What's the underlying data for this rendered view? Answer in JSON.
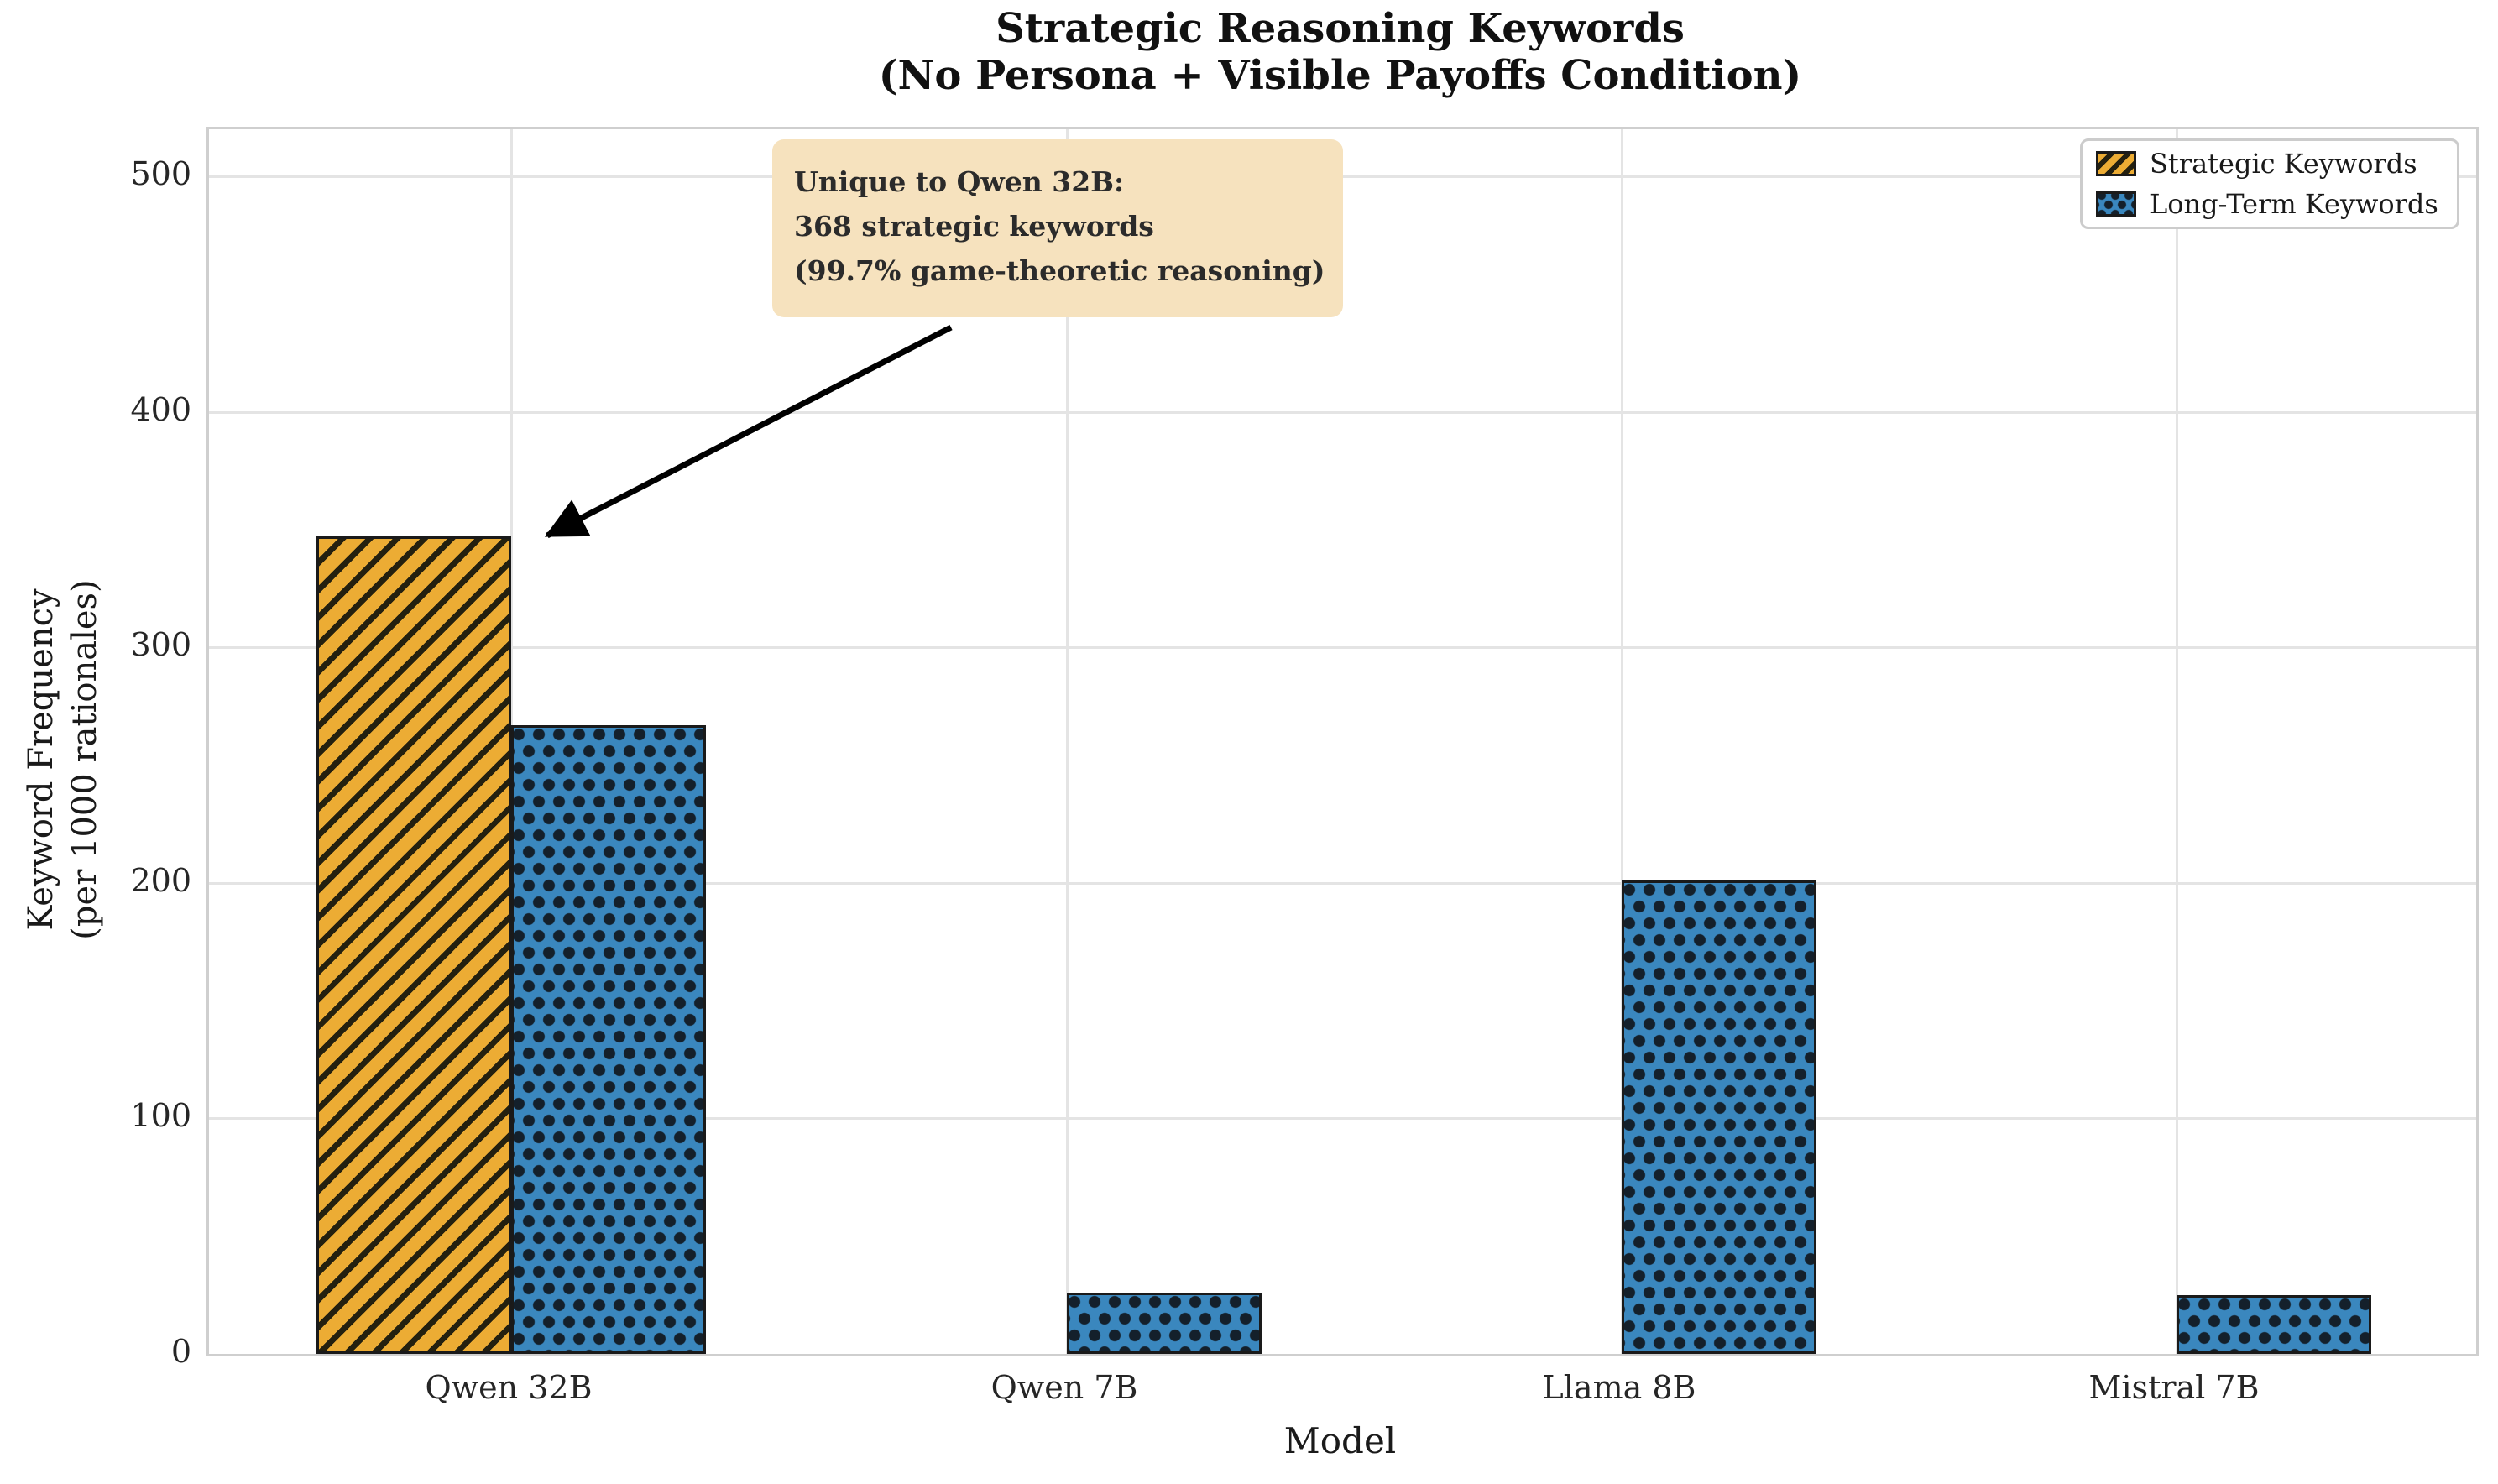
{
  "chart_data": {
    "type": "bar",
    "title": "Strategic Reasoning Keywords",
    "subtitle": "(No Persona + Visible Payoffs Condition)",
    "xlabel": "Model",
    "ylabel_line1": "Keyword Frequency",
    "ylabel_line2": "(per 1000 rationales)",
    "categories": [
      "Qwen 32B",
      "Qwen 7B",
      "Llama 8B",
      "Mistral 7B"
    ],
    "series": [
      {
        "name": "Strategic Keywords",
        "values": [
          347,
          0,
          0,
          0
        ],
        "color": "#ECAC34",
        "hatch": "diagonal"
      },
      {
        "name": "Long-Term Keywords",
        "values": [
          267,
          26,
          201,
          25
        ],
        "color": "#3A87BE",
        "hatch": "dots"
      }
    ],
    "ylim": [
      0,
      520
    ],
    "yticks": [
      0,
      100,
      200,
      300,
      400,
      500
    ],
    "grid": true,
    "legend_position": "upper right",
    "annotation": {
      "line1": "Unique to Qwen 32B:",
      "line2": "368 strategic keywords",
      "line3": "(99.7% game-theoretic reasoning)",
      "bg_color": "#F6E2BE",
      "points_to_category": "Qwen 32B",
      "points_to_series": "Strategic Keywords"
    },
    "colors": {
      "strategic": "#ECAC34",
      "long_term": "#3A87BE",
      "grid": "#e4e4e4",
      "bar_edge": "#1a1a1a",
      "annotation_bg": "#F6E2BE"
    }
  }
}
